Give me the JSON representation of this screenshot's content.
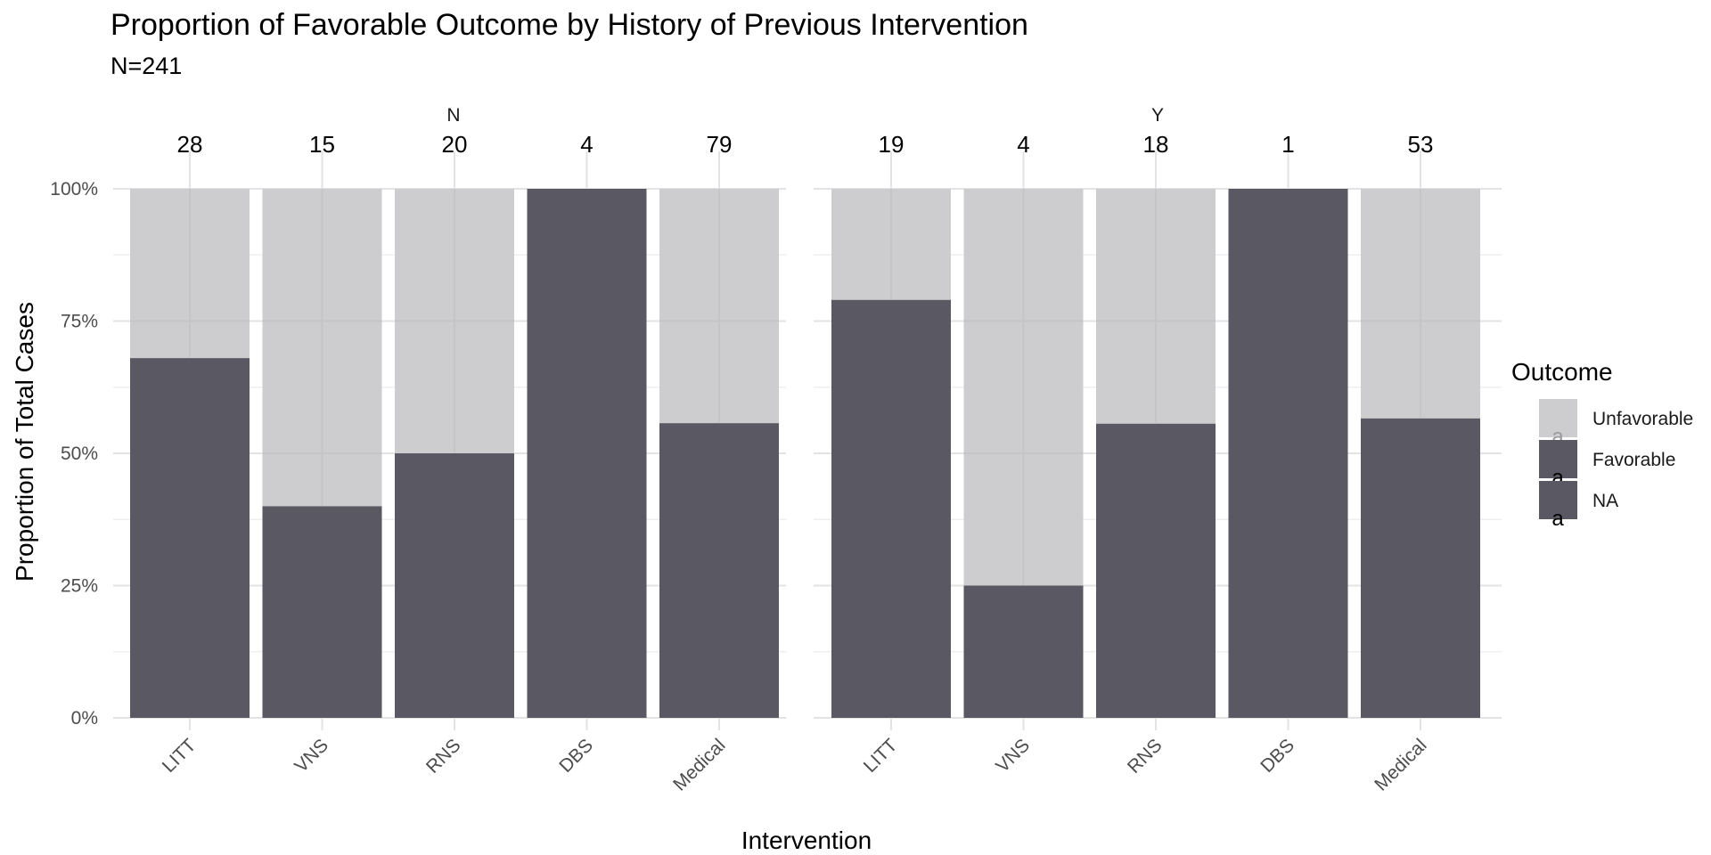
{
  "chart_data": {
    "type": "bar",
    "stacked": true,
    "title": "Proportion of Favorable Outcome by History of Previous Intervention",
    "subtitle": "N=241",
    "xlabel": "Intervention",
    "ylabel": "Proportion of Total Cases",
    "ylim": [
      0,
      1
    ],
    "yticks": [
      0,
      0.25,
      0.5,
      0.75,
      1.0
    ],
    "ytick_labels": [
      "0%",
      "25%",
      "50%",
      "75%",
      "100%"
    ],
    "grid": true,
    "categories": [
      "LITT",
      "VNS",
      "RNS",
      "DBS",
      "Medical"
    ],
    "facets": [
      {
        "label": "N",
        "counts": [
          "28",
          "15",
          "20",
          "4",
          "79"
        ],
        "series": [
          {
            "name": "Favorable",
            "values": [
              0.68,
              0.4,
              0.5,
              1.0,
              0.557
            ]
          },
          {
            "name": "Unfavorable",
            "values": [
              0.32,
              0.6,
              0.5,
              0.0,
              0.443
            ]
          }
        ]
      },
      {
        "label": "Y",
        "counts": [
          "19",
          "4",
          "18",
          "1",
          "53"
        ],
        "series": [
          {
            "name": "Favorable",
            "values": [
              0.79,
              0.25,
              0.556,
              1.0,
              0.566
            ]
          },
          {
            "name": "Unfavorable",
            "values": [
              0.21,
              0.75,
              0.444,
              0.0,
              0.434
            ]
          }
        ]
      }
    ],
    "legend": {
      "title": "Outcome",
      "placement": "right",
      "entries": [
        {
          "label": "Unfavorable",
          "color": "#cdcdcf",
          "glyph": "a",
          "glyph_color": "#9a9a9c"
        },
        {
          "label": "Favorable",
          "color": "#5a5862",
          "glyph": "a",
          "glyph_color": "#000000"
        },
        {
          "label": "NA",
          "color": "#5a5862",
          "glyph": "a",
          "glyph_color": "#000000"
        }
      ]
    },
    "colors": {
      "Favorable": "#5a5862",
      "Unfavorable": "#cdcdcf"
    }
  }
}
